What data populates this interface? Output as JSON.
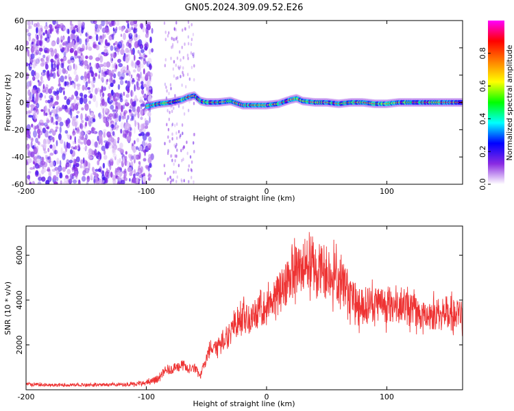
{
  "title": "GN05.2024.309.09.52.E26",
  "chart_data": [
    {
      "type": "heatmap",
      "xlabel": "Height of straight line (km)",
      "ylabel": "Frequency (Hz)",
      "xlim": [
        -200,
        163
      ],
      "ylim": [
        -60,
        60
      ],
      "xticks": [
        -200,
        -100,
        0,
        100
      ],
      "yticks": [
        -60,
        -40,
        -20,
        0,
        20,
        40,
        60
      ],
      "colorbar": {
        "label": "Normalized spectral amplitude",
        "range": [
          0,
          1
        ],
        "ticks": [
          "0.0",
          "0.2",
          "0.4",
          "0.6",
          "0.8"
        ],
        "tick_values": [
          0,
          0.2,
          0.4,
          0.6,
          0.8
        ],
        "colors": [
          "#ffffff",
          "#8a2be2",
          "#0000ff",
          "#00ffff",
          "#00ff00",
          "#ffff00",
          "#ff8000",
          "#ff0000",
          "#ff00ff"
        ]
      },
      "noise_region_x": [
        -200,
        -95
      ],
      "streak_x": [
        -85,
        -60
      ],
      "signal_track": {
        "x": [
          -100,
          -90,
          -80,
          -70,
          -65,
          -60,
          -55,
          -50,
          -40,
          -30,
          -20,
          -10,
          0,
          10,
          20,
          25,
          30,
          40,
          50,
          60,
          70,
          80,
          90,
          100,
          110,
          120,
          130,
          140,
          150,
          163
        ],
        "frequency": [
          -3,
          -1,
          0,
          2,
          4,
          5,
          1,
          0,
          0,
          1,
          -2,
          -2,
          -2,
          -1,
          2,
          3,
          1,
          0,
          0,
          -1,
          0,
          0,
          -1,
          -1,
          0,
          0,
          0,
          0,
          0,
          0
        ]
      }
    },
    {
      "type": "line",
      "xlabel": "Height of straight line (km)",
      "ylabel": "SNR (10 * v/v)",
      "xlim": [
        -200,
        163
      ],
      "ylim": [
        0,
        7300
      ],
      "xticks": [
        -200,
        -100,
        0,
        100
      ],
      "yticks": [
        2000,
        4000,
        6000
      ],
      "color": "#ee3333",
      "x": [
        -200,
        -180,
        -160,
        -140,
        -120,
        -100,
        -90,
        -85,
        -80,
        -75,
        -70,
        -65,
        -60,
        -55,
        -50,
        -45,
        -40,
        -35,
        -30,
        -25,
        -20,
        -15,
        -10,
        -5,
        0,
        5,
        10,
        15,
        20,
        25,
        30,
        35,
        40,
        45,
        50,
        55,
        60,
        65,
        70,
        75,
        80,
        90,
        100,
        110,
        120,
        130,
        140,
        150,
        163
      ],
      "y": [
        250,
        200,
        220,
        230,
        230,
        300,
        500,
        800,
        900,
        1000,
        1100,
        900,
        1000,
        600,
        1500,
        2000,
        2000,
        2300,
        2500,
        3000,
        3300,
        3000,
        3300,
        3700,
        3600,
        3900,
        4300,
        4700,
        5200,
        5300,
        5500,
        5600,
        5500,
        5400,
        5300,
        5200,
        4900,
        4600,
        4300,
        3800,
        3700,
        3900,
        3800,
        3800,
        3600,
        3300,
        3400,
        3300,
        3300
      ]
    }
  ]
}
